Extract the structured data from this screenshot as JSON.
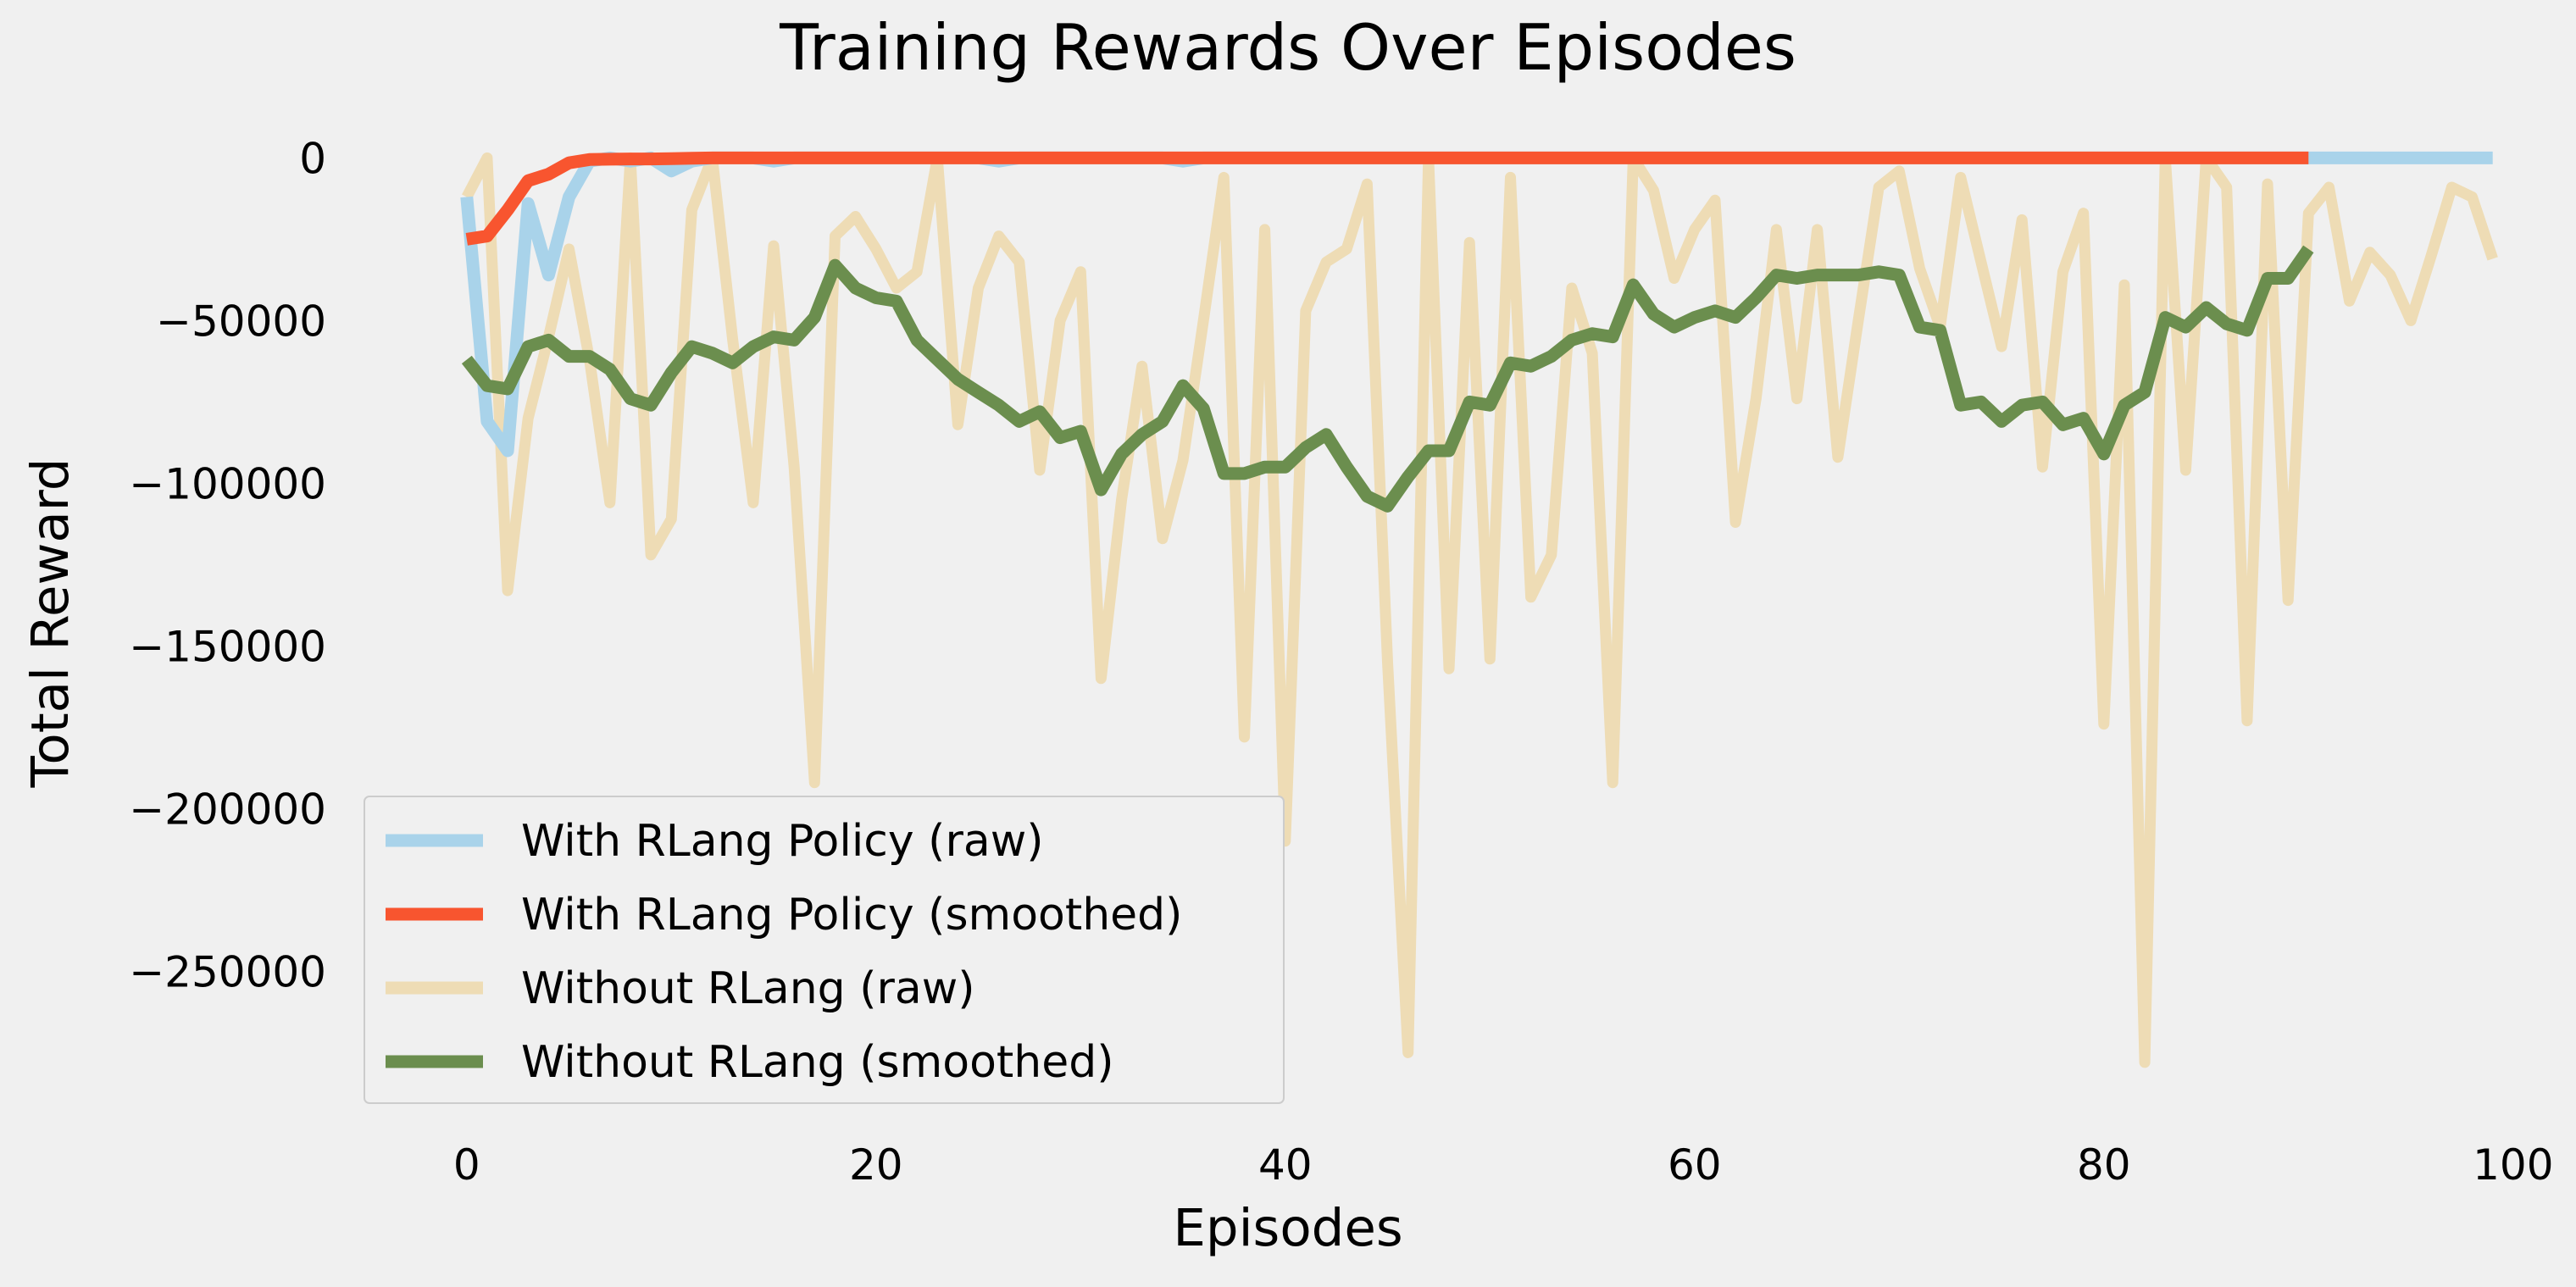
{
  "chart_data": {
    "type": "line",
    "title": "Training Rewards Over Episodes",
    "xlabel": "Episodes",
    "ylabel": "Total Reward",
    "xlim": [
      -5,
      101
    ],
    "ylim": [
      -290000,
      10000
    ],
    "xticks": [
      0,
      20,
      40,
      60,
      80,
      100
    ],
    "yticks": [
      0,
      -50000,
      -100000,
      -150000,
      -200000,
      -250000
    ],
    "xtick_labels": [
      "0",
      "20",
      "40",
      "60",
      "80",
      "100"
    ],
    "ytick_labels": [
      "0",
      "−50000",
      "−100000",
      "−150000",
      "−200000",
      "−250000"
    ],
    "grid": false,
    "legend_position": "lower-left",
    "series": [
      {
        "name": "Without RLang (raw)",
        "color": "#eedcb5",
        "x_start": 0,
        "values": [
          -12000,
          0,
          -133000,
          -80000,
          -55000,
          -28000,
          -62000,
          -106000,
          0,
          -122000,
          -111000,
          -16000,
          0,
          -56000,
          -106000,
          -27000,
          -95000,
          -192000,
          -24000,
          -18000,
          -28000,
          -40000,
          -35000,
          0,
          -82000,
          -40000,
          -24000,
          -32000,
          -96000,
          -50000,
          -35000,
          -160000,
          -105000,
          -64000,
          -117000,
          -93000,
          -50000,
          -6000,
          -178000,
          -22000,
          -210000,
          -47000,
          -32000,
          -28000,
          -8000,
          -155000,
          -275000,
          0,
          -157000,
          -26000,
          -154000,
          -6000,
          -135000,
          -122000,
          -40000,
          -60000,
          -192000,
          0,
          -10000,
          -37000,
          -22000,
          -13000,
          -112000,
          -74000,
          -22000,
          -74000,
          -22000,
          -92000,
          -50000,
          -9000,
          -4000,
          -34000,
          -52000,
          -6000,
          -32000,
          -58000,
          -19000,
          -95000,
          -35000,
          -17000,
          -174000,
          -39000,
          -278000,
          0,
          -96000,
          0,
          -9000,
          -173000,
          -8000,
          -136000,
          -17000,
          -9000,
          -44000,
          -29000,
          -36000,
          -50000,
          -30000,
          -9000,
          -12000,
          -31000
        ]
      },
      {
        "name": "With RLang Policy (raw)",
        "color": "#a9d3ea",
        "x_start": 0,
        "values": [
          -12000,
          -81000,
          -90000,
          -14000,
          -36000,
          -12000,
          -1000,
          0,
          -1000,
          0,
          -4000,
          -1000,
          0,
          0,
          0,
          -1000,
          0,
          0,
          0,
          0,
          0,
          0,
          0,
          0,
          0,
          0,
          -1000,
          0,
          0,
          0,
          0,
          0,
          0,
          0,
          0,
          -1000,
          0,
          0,
          0,
          0,
          0,
          0,
          0,
          0,
          0,
          0,
          0,
          0,
          0,
          0,
          0,
          0,
          0,
          0,
          0,
          0,
          0,
          0,
          0,
          0,
          0,
          0,
          0,
          0,
          0,
          0,
          0,
          0,
          0,
          0,
          0,
          0,
          0,
          0,
          0,
          0,
          0,
          0,
          0,
          0,
          0,
          0,
          0,
          0,
          0,
          0,
          0,
          0,
          0,
          0,
          0,
          0,
          0,
          0,
          0,
          0,
          0,
          0,
          0,
          0
        ]
      },
      {
        "name": "With RLang Policy (smoothed)",
        "color": "#f8552f",
        "x_start": 0,
        "values": [
          -25000,
          -24000,
          -16000,
          -7000,
          -5000,
          -1500,
          -500,
          -400,
          -300,
          -300,
          -200,
          -100,
          0,
          0,
          0,
          0,
          0,
          0,
          0,
          0,
          0,
          0,
          0,
          0,
          0,
          0,
          0,
          0,
          0,
          0,
          0,
          0,
          0,
          0,
          0,
          0,
          0,
          0,
          0,
          0,
          0,
          0,
          0,
          0,
          0,
          0,
          0,
          0,
          0,
          0,
          0,
          0,
          0,
          0,
          0,
          0,
          0,
          0,
          0,
          0,
          0,
          0,
          0,
          0,
          0,
          0,
          0,
          0,
          0,
          0,
          0,
          0,
          0,
          0,
          0,
          0,
          0,
          0,
          0,
          0,
          0,
          0,
          0,
          0,
          0,
          0,
          0,
          0,
          0,
          0,
          0
        ]
      },
      {
        "name": "Without RLang (smoothed)",
        "color": "#6b8e4e",
        "x_start": 0,
        "values": [
          -62000,
          -70000,
          -71000,
          -58000,
          -56000,
          -61000,
          -61000,
          -65000,
          -74000,
          -76000,
          -66000,
          -58000,
          -60000,
          -63000,
          -58000,
          -55000,
          -56000,
          -49000,
          -33000,
          -40000,
          -43000,
          -44000,
          -56000,
          -62000,
          -68000,
          -72000,
          -76000,
          -81000,
          -78000,
          -86000,
          -84000,
          -102000,
          -91000,
          -85000,
          -81000,
          -70000,
          -77000,
          -97000,
          -97000,
          -95000,
          -95000,
          -89000,
          -85000,
          -95000,
          -104000,
          -107000,
          -98000,
          -90000,
          -90000,
          -75000,
          -76000,
          -63000,
          -64000,
          -61000,
          -56000,
          -54000,
          -55000,
          -39000,
          -48000,
          -52000,
          -49000,
          -47000,
          -49000,
          -43000,
          -36000,
          -37000,
          -36000,
          -36000,
          -36000,
          -35000,
          -36000,
          -52000,
          -53000,
          -76000,
          -75000,
          -81000,
          -76000,
          -75000,
          -82000,
          -80000,
          -91000,
          -76000,
          -72000,
          -49000,
          -52000,
          -46000,
          -51000,
          -53000,
          -37000,
          -37000,
          -28000
        ]
      }
    ]
  }
}
